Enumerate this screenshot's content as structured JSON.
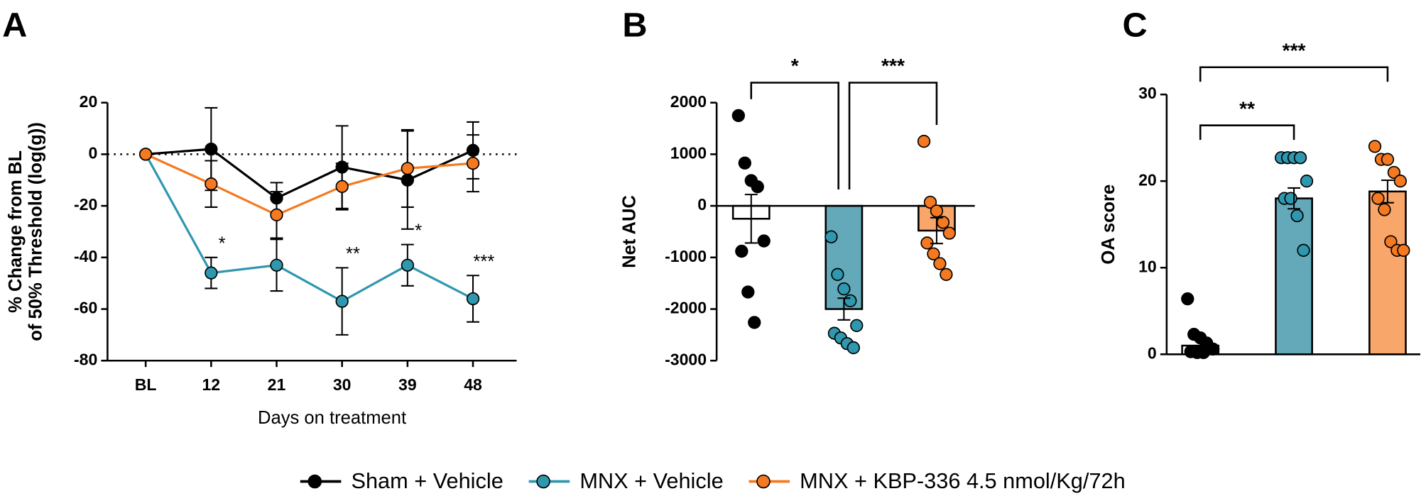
{
  "chart_data": [
    {
      "type": "line",
      "label": "A",
      "ylabel": [
        "% Change from BL",
        "of 50% Threshold (log(g))"
      ],
      "xlabel": "Days on treatment",
      "categories": [
        "BL",
        "12",
        "21",
        "30",
        "39",
        "48"
      ],
      "ylim": [
        -80,
        20
      ],
      "yticks": [
        -80,
        -60,
        -40,
        -20,
        0,
        20
      ],
      "hline": 0,
      "series": [
        {
          "name": "Sham + Vehicle",
          "color": "#000000",
          "values": [
            0,
            2,
            -17,
            -5,
            -10,
            1.5
          ],
          "errors": [
            0,
            16,
            6,
            16,
            19,
            11
          ]
        },
        {
          "name": "MNX + Vehicle",
          "color": "#2f97ae",
          "values": [
            0,
            -46,
            -43,
            -57,
            -43,
            -56
          ],
          "errors": [
            0,
            6,
            10,
            13,
            8,
            9
          ]
        },
        {
          "name": "MNX + KBP-336 4.5 nmol/Kg/72h",
          "color": "#f47920",
          "values": [
            0,
            -11.5,
            -23.5,
            -12.5,
            -5.5,
            -3.5
          ],
          "errors": [
            0,
            9,
            9,
            9,
            15,
            11
          ]
        }
      ],
      "annotations": [
        null,
        "*",
        null,
        "**",
        "*",
        "***"
      ]
    },
    {
      "type": "bar",
      "label": "B",
      "ylabel": "Net AUC",
      "ylim": [
        -3000,
        2000
      ],
      "yticks": [
        -3000,
        -2000,
        -1000,
        0,
        1000,
        2000
      ],
      "series": [
        {
          "name": "Sham + Vehicle",
          "color": "#000000",
          "bar_color": "#ffffff",
          "value": -250,
          "error": 470,
          "points": [
            1750,
            830,
            490,
            370,
            -680,
            -880,
            -1670,
            -2260
          ]
        },
        {
          "name": "MNX + Vehicle",
          "color": "#2f97ae",
          "bar_color": "#63a9b9",
          "value": -2000,
          "error": 210,
          "points": [
            -600,
            -1330,
            -1610,
            -1840,
            -2320,
            -2470,
            -2560,
            -2670,
            -2750
          ]
        },
        {
          "name": "MNX + KBP-336 4.5 nmol/Kg/72h",
          "color": "#f47920",
          "bar_color": "#f9a66b",
          "value": -480,
          "error": 250,
          "points": [
            1250,
            70,
            -100,
            -320,
            -530,
            -720,
            -930,
            -1120,
            -1330
          ]
        }
      ],
      "brackets": [
        {
          "label": "*",
          "from": "Sham + Vehicle",
          "to": "MNX + Vehicle"
        },
        {
          "label": "***",
          "from": "MNX + Vehicle",
          "to": "MNX + KBP-336 4.5 nmol/Kg/72h"
        }
      ]
    },
    {
      "type": "bar",
      "label": "C",
      "ylabel": "OA score",
      "ylim": [
        0,
        30
      ],
      "yticks": [
        0,
        10,
        20,
        30
      ],
      "series": [
        {
          "name": "Sham + Vehicle",
          "color": "#000000",
          "bar_color": "#ffffff",
          "value": 1,
          "error": 0.8,
          "points": [
            6.4,
            2.3,
            1.9,
            1.3,
            0.6,
            0.3,
            0.2,
            0.2
          ]
        },
        {
          "name": "MNX + Vehicle",
          "color": "#2f97ae",
          "bar_color": "#63a9b9",
          "value": 18,
          "error": 1.2,
          "points": [
            22.7,
            22.7,
            22.7,
            22.7,
            20,
            18,
            18,
            16,
            12
          ]
        },
        {
          "name": "MNX + KBP-336 4.5 nmol/Kg/72h",
          "color": "#f47920",
          "bar_color": "#f9a66b",
          "value": 18.8,
          "error": 1.3,
          "points": [
            24,
            22.5,
            22.5,
            21,
            20,
            18,
            16.7,
            13,
            12,
            12
          ]
        }
      ],
      "brackets": [
        {
          "label": "**",
          "from": "Sham + Vehicle",
          "to": "MNX + Vehicle"
        },
        {
          "label": "***",
          "from": "Sham + Vehicle",
          "to": "MNX + KBP-336 4.5 nmol/Kg/72h"
        }
      ]
    }
  ]
}
